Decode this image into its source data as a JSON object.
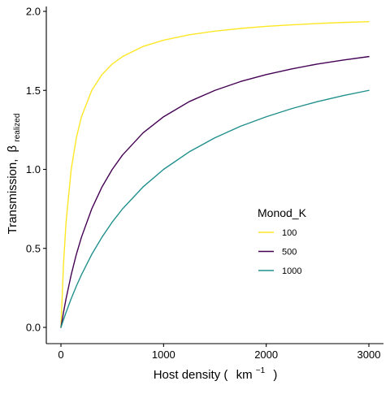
{
  "chart_data": {
    "type": "line",
    "xlabel_prefix": "Host density (",
    "xlabel_unit": "km",
    "xlabel_exp": "−1",
    "xlabel_suffix": ")",
    "ylabel_prefix": "Transmission,",
    "ylabel_symbol": "β",
    "ylabel_sub": "realized",
    "xlim": [
      0,
      3000
    ],
    "ylim": [
      0,
      2.0
    ],
    "x_ticks": [
      0,
      1000,
      2000,
      3000
    ],
    "x_tick_labels": [
      "0",
      "1000",
      "2000",
      "3000"
    ],
    "y_ticks": [
      0,
      0.5,
      1.0,
      1.5,
      2.0
    ],
    "y_tick_labels": [
      "0.0",
      "0.5",
      "1.0",
      "1.5",
      "2.0"
    ],
    "grid": false,
    "legend": {
      "title": "Monod_K",
      "position": "right-center"
    },
    "x": [
      0,
      25,
      50,
      100,
      150,
      200,
      300,
      400,
      500,
      600,
      800,
      1000,
      1250,
      1500,
      1750,
      2000,
      2250,
      2500,
      2750,
      3000
    ],
    "series": [
      {
        "name": "100",
        "color": "#FDE725",
        "values": [
          0,
          0.4,
          0.667,
          1.0,
          1.2,
          1.333,
          1.5,
          1.6,
          1.667,
          1.714,
          1.778,
          1.818,
          1.852,
          1.875,
          1.892,
          1.905,
          1.915,
          1.923,
          1.93,
          1.935
        ]
      },
      {
        "name": "500",
        "color": "#440154",
        "values": [
          0,
          0.095,
          0.182,
          0.333,
          0.462,
          0.571,
          0.75,
          0.889,
          1.0,
          1.091,
          1.231,
          1.333,
          1.429,
          1.5,
          1.556,
          1.6,
          1.636,
          1.667,
          1.692,
          1.714
        ]
      },
      {
        "name": "1000",
        "color": "#21908C",
        "values": [
          0,
          0.049,
          0.095,
          0.182,
          0.261,
          0.333,
          0.462,
          0.571,
          0.667,
          0.75,
          0.889,
          1.0,
          1.111,
          1.2,
          1.273,
          1.333,
          1.385,
          1.429,
          1.467,
          1.5
        ]
      }
    ]
  }
}
